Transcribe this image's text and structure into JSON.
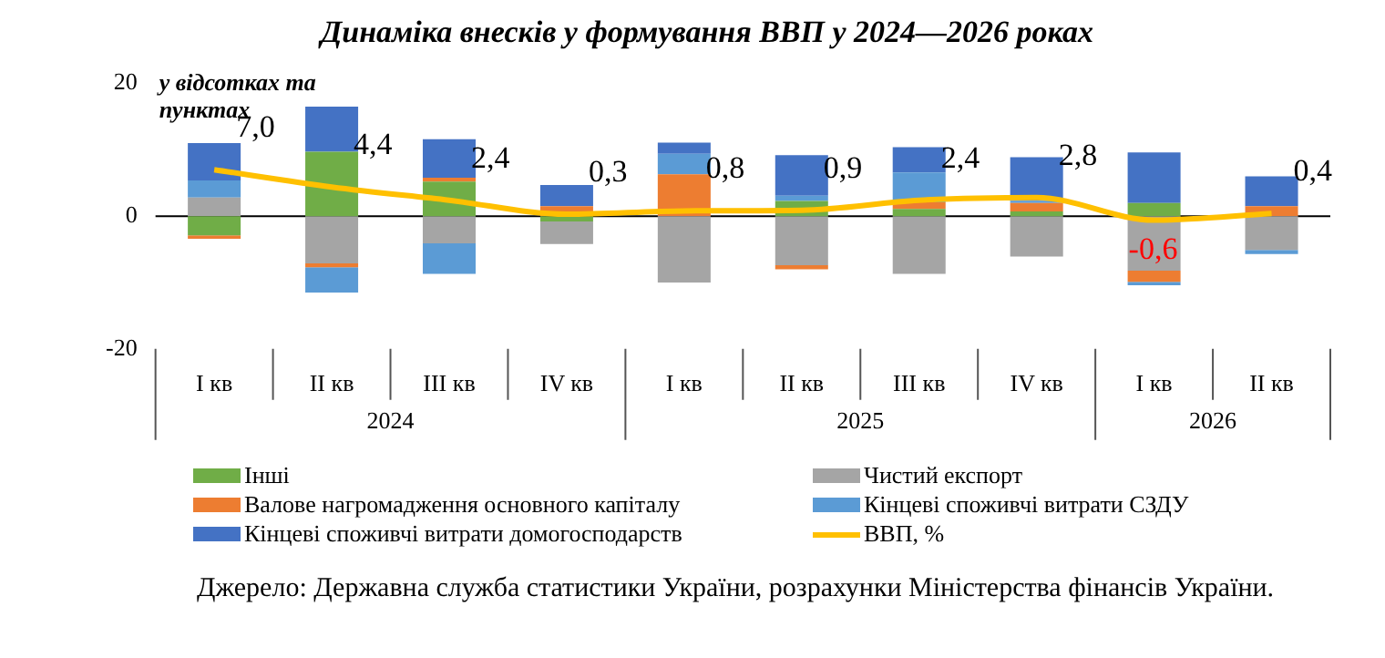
{
  "chart_data": {
    "type": "bar",
    "title": "Динаміка внесків у формування ВВП у 2024—2026 роках",
    "ylabel": "у відсотках та пунктах",
    "categories": [
      "I кв",
      "II кв",
      "III кв",
      "IV кв",
      "I кв",
      "II кв",
      "III кв",
      "IV кв",
      "I кв",
      "II кв"
    ],
    "stacked": true,
    "ylim": [
      -20,
      20
    ],
    "yticks": [
      -20,
      0,
      20
    ],
    "ref_lines": [
      {
        "axis": "y",
        "value": 0,
        "color": "#000000"
      }
    ],
    "legend": "bottom",
    "annotations": [
      "2024",
      "2025",
      "2026",
      "Джерело: Державна служба статистики України, розрахунки Міністерства фінансів України."
    ],
    "series": [
      {
        "name": "Інші",
        "color": "#70ad47",
        "values": [
          -2.9,
          9.7,
          5.2,
          -0.8,
          null,
          2.3,
          1.1,
          0.7,
          2.0,
          null
        ]
      },
      {
        "name": "Чистий експорт",
        "color": "#a5a5a5",
        "values": [
          2.8,
          -7.1,
          -4.1,
          -3.4,
          -10.0,
          -7.4,
          -8.7,
          -6.1,
          -8.2,
          -5.1
        ]
      },
      {
        "name": "Валове нагромадження основного капіталу",
        "color": "#ed7d31",
        "values": [
          -0.5,
          -0.6,
          0.6,
          1.5,
          6.3,
          -0.6,
          1.0,
          1.3,
          -1.7,
          1.5
        ]
      },
      {
        "name": "Кінцеві споживчі витрати СЗДУ",
        "color": "#5b9bd5",
        "values": [
          2.6,
          -3.8,
          -4.6,
          null,
          3.1,
          0.8,
          4.5,
          0.3,
          -0.5,
          -0.6
        ]
      },
      {
        "name": "Кінцеві споживчі витрати домогосподарств",
        "color": "#4472c4",
        "values": [
          5.6,
          6.8,
          5.8,
          3.2,
          1.7,
          6.1,
          3.8,
          6.6,
          7.6,
          4.5
        ]
      },
      {
        "name": "ВВП, %",
        "type": "line",
        "color": "#ffc000",
        "marker": "none",
        "values": [
          7.0,
          4.4,
          2.4,
          0.3,
          0.8,
          0.9,
          2.4,
          2.8,
          -0.6,
          0.4
        ],
        "value_labels": [
          "7,0",
          "4,4",
          "2,4",
          "0,3",
          "0,8",
          "0,9",
          "2,4",
          "2,8",
          "-0,6",
          "0,4"
        ]
      }
    ]
  }
}
